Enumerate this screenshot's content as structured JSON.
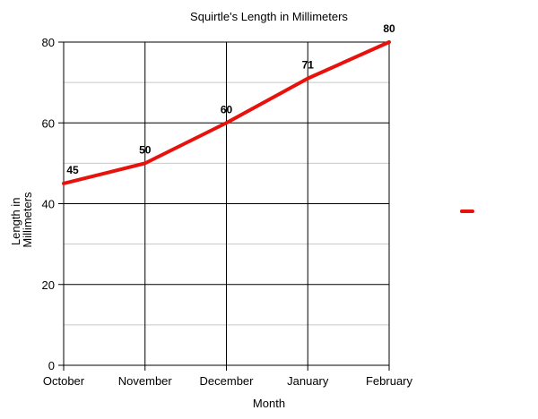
{
  "chart_data": {
    "type": "line",
    "title": "Squirtle's Length in Millimeters",
    "xlabel": "Month",
    "ylabel": "Length in Millimeters",
    "categories": [
      "October",
      "November",
      "December",
      "January",
      "February"
    ],
    "series": [
      {
        "values": [
          45,
          50,
          60,
          71,
          80
        ],
        "color": "#e8120c"
      }
    ],
    "ylim": [
      0,
      80
    ],
    "yticks": [
      0,
      20,
      40,
      60,
      80
    ],
    "grid": true,
    "legend": "right",
    "data_labels": true
  }
}
